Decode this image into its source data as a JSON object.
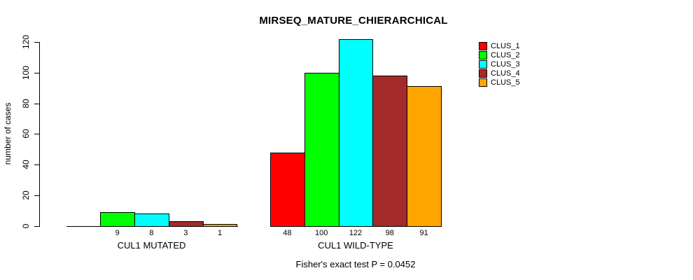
{
  "figure": {
    "title": "MIRSEQ_MATURE_CHIERARCHICAL",
    "ylabel": "number of cases",
    "footer": "Fisher's exact test P = 0.0452"
  },
  "chart_data": {
    "type": "bar",
    "title": "MIRSEQ_MATURE_CHIERARCHICAL",
    "xlabel": "",
    "ylabel": "number of cases",
    "ylim": [
      0,
      120
    ],
    "yticks": [
      0,
      20,
      40,
      60,
      80,
      100,
      120
    ],
    "grid": false,
    "legend_position": "top-right",
    "categories": [
      "CUL1 MUTATED",
      "CUL1 WILD-TYPE"
    ],
    "series": [
      {
        "name": "CLUS_1",
        "color": "#FF0000",
        "values": [
          0,
          48
        ]
      },
      {
        "name": "CLUS_2",
        "color": "#00FF00",
        "values": [
          9,
          100
        ]
      },
      {
        "name": "CLUS_3",
        "color": "#00FFFF",
        "values": [
          8,
          122
        ]
      },
      {
        "name": "CLUS_4",
        "color": "#A52A2A",
        "values": [
          3,
          98
        ]
      },
      {
        "name": "CLUS_5",
        "color": "#FFA500",
        "values": [
          1,
          91
        ]
      }
    ],
    "bar_value_labels": [
      [
        "",
        "9",
        "8",
        "3",
        "1"
      ],
      [
        "48",
        "100",
        "122",
        "98",
        "91"
      ]
    ],
    "annotation": "Fisher's exact test P = 0.0452"
  }
}
